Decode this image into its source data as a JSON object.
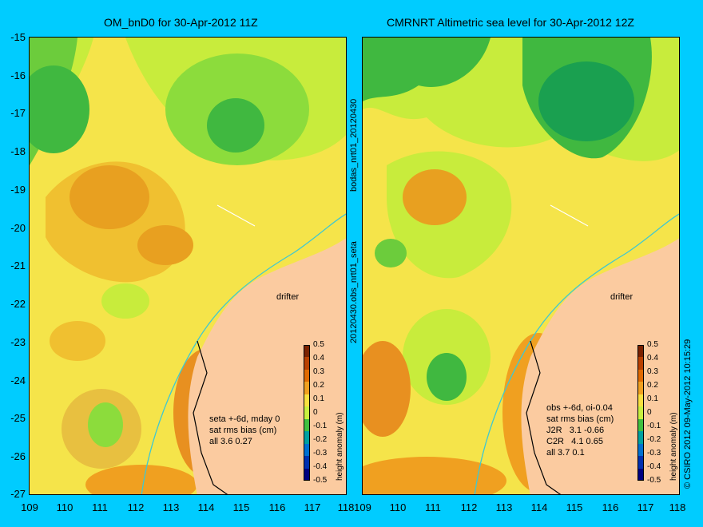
{
  "titles": {
    "left": "OM_bnD0 for 30-Apr-2012 11Z",
    "right": "CMRNRT Altimetric sea level  for 30-Apr-2012 12Z"
  },
  "y_ticks": [
    "-15",
    "-16",
    "-17",
    "-18",
    "-19",
    "-20",
    "-21",
    "-22",
    "-23",
    "-24",
    "-25",
    "-26",
    "-27"
  ],
  "x_ticks_left": [
    "109",
    "110",
    "111",
    "112",
    "113",
    "114",
    "115",
    "116",
    "117",
    "118"
  ],
  "x_ticks_right": [
    "109",
    "110",
    "111",
    "112",
    "113",
    "114",
    "115",
    "116",
    "117",
    "118"
  ],
  "side_labels": {
    "top": "bodas_nrt01_20120430",
    "bottom": "20120430.obs_nrt01_seta"
  },
  "right_edge_label": "© CSIRO 2012   09-May-2012 10:15:29",
  "drifter_label": "drifter",
  "left_info": [
    "seta +-6d, mday 0",
    "sat rms bias (cm)",
    "all 3.6 0.27"
  ],
  "right_info": [
    "obs +-6d, oi-0.04",
    "sat rms bias (cm)",
    "J2R   3.1 -0.66",
    "C2R   4.1 0.65",
    "all 3.7 0.1"
  ],
  "colorbar": {
    "title": "height anomaly (m)",
    "ticks": [
      "0.5",
      "0.4",
      "0.3",
      "0.2",
      "0.1",
      "0",
      "-0.1",
      "-0.2",
      "-0.3",
      "-0.4",
      "-0.5"
    ],
    "colors": [
      "#7a2200",
      "#b84000",
      "#e06a00",
      "#f0a020",
      "#f8e040",
      "#c8f040",
      "#40c040",
      "#00a0a0",
      "#0070d0",
      "#0030b0",
      "#000080"
    ]
  },
  "colors": {
    "background": "#00ccff",
    "land": "#fbcba0",
    "coast_line": "#40c8d0"
  }
}
